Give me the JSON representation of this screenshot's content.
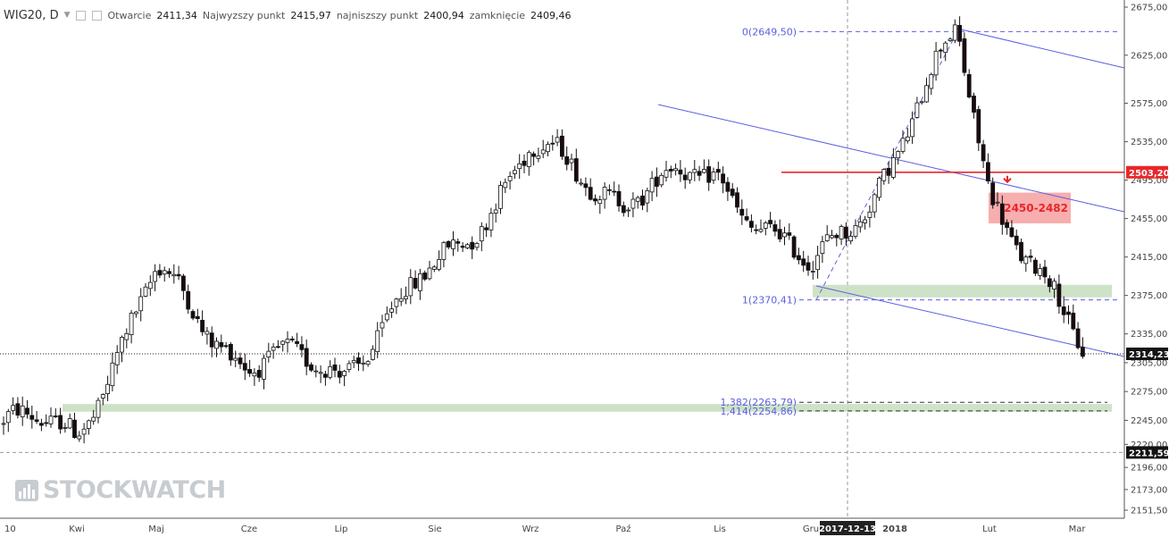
{
  "header": {
    "symbol": "WIG20, D",
    "open_label": "Otwarcie",
    "open_value": "2411,34",
    "high_label": "Najwyzszy punkt",
    "high_value": "2415,97",
    "low_label": "najniszszy punkt",
    "low_value": "2400,94",
    "close_label": "zamknięcie",
    "close_value": "2409,46"
  },
  "watermark": "STOCKWATCH",
  "colors": {
    "candle_up": "#ffffff",
    "candle_down": "#1a0a12",
    "support_band": "#c9dfc1",
    "resistance_band": "#f6a0a0",
    "resistance_line": "#e8272b",
    "trend": "#5b5fe0",
    "price_tag_dark": "#131313"
  },
  "chart_data": {
    "type": "candlestick",
    "title": "WIG20, D",
    "y_axis": {
      "range": [
        2140,
        2680
      ],
      "ticks": [
        "2675,00",
        "2625,00",
        "2575,00",
        "2535,00",
        "2495,00",
        "2455,00",
        "2415,00",
        "2375,00",
        "2335,00",
        "2305,00",
        "2275,00",
        "2245,00",
        "2220,00",
        "2196,00",
        "2173,00",
        "2151,50"
      ]
    },
    "x_axis": {
      "labels": [
        "10",
        "Kwi",
        "Maj",
        "Cze",
        "Lip",
        "Sie",
        "Wrz",
        "Paź",
        "Lis",
        "Gru",
        "2017-12-13",
        "2018",
        "Lut",
        "Mar"
      ]
    },
    "price_tags": [
      {
        "label": "2503,20",
        "value": 2503.2,
        "style": "red"
      },
      {
        "label": "2314,23",
        "value": 2314.23,
        "style": "dark"
      },
      {
        "label": "2211,59",
        "value": 2211.59,
        "style": "dark"
      }
    ],
    "fib_levels": [
      {
        "label": "0(2649,50)",
        "value": 2649.5
      },
      {
        "label": "1(2370,41)",
        "value": 2370.41
      },
      {
        "label": "1,382(2263,79)",
        "value": 2263.79
      },
      {
        "label": "1,414(2254,86)",
        "value": 2254.86
      }
    ],
    "zones": [
      {
        "label": "2450-2482",
        "from": 2450,
        "to": 2482,
        "type": "resistance"
      },
      {
        "label": "",
        "from": 2373,
        "to": 2386,
        "type": "support"
      },
      {
        "label": "",
        "from": 2254,
        "to": 2262,
        "type": "support"
      }
    ],
    "resistance_line": 2503.2,
    "current_price": 2314.23,
    "prior_low": 2211.59,
    "anchors": [
      [
        "10",
        2240
      ],
      [
        "Kwi",
        2235
      ],
      [
        "Maj",
        2395
      ],
      [
        "Cze",
        2305
      ],
      [
        "Lip",
        2300
      ],
      [
        "Sie",
        2400
      ],
      [
        "Wrz",
        2525
      ],
      [
        "Paź",
        2480
      ],
      [
        "Lis",
        2500
      ],
      [
        "Gru",
        2395
      ],
      [
        "2018",
        2520
      ],
      [
        "peak",
        2648
      ],
      [
        "Lut",
        2490
      ],
      [
        "Mar",
        2310
      ]
    ]
  }
}
